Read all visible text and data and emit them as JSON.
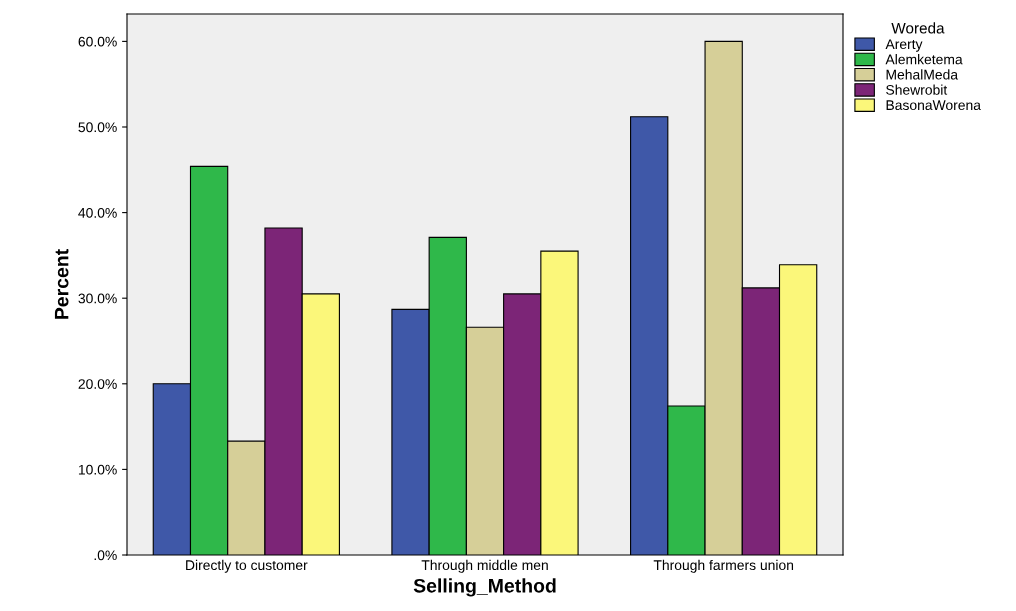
{
  "chart_data": {
    "type": "bar",
    "xlabel": "Selling_Method",
    "ylabel": "Percent",
    "legend_title": "Woreda",
    "categories": [
      "Directly to customer",
      "Through middle men",
      "Through farmers union"
    ],
    "series": [
      {
        "name": "Arerty",
        "color": "#3f58a8",
        "values": [
          20.0,
          28.7,
          51.2
        ]
      },
      {
        "name": "Alemketema",
        "color": "#2fb84a",
        "values": [
          45.4,
          37.1,
          17.4
        ]
      },
      {
        "name": "MehalMeda",
        "color": "#d6cf98",
        "values": [
          13.3,
          26.6,
          60.0
        ]
      },
      {
        "name": "Shewrobit",
        "color": "#7c2577",
        "values": [
          38.2,
          30.5,
          31.2
        ]
      },
      {
        "name": "BasonaWorena",
        "color": "#fbf77a",
        "values": [
          30.5,
          35.5,
          33.9
        ]
      }
    ],
    "ylim": [
      0,
      63.2
    ],
    "yticks": [
      {
        "value": 0,
        "label": ".0%"
      },
      {
        "value": 10,
        "label": "10.0%"
      },
      {
        "value": 20,
        "label": "20.0%"
      },
      {
        "value": 30,
        "label": "30.0%"
      },
      {
        "value": 40,
        "label": "40.0%"
      },
      {
        "value": 50,
        "label": "50.0%"
      },
      {
        "value": 60,
        "label": "60.0%"
      }
    ],
    "legend": "right",
    "grid": false
  }
}
